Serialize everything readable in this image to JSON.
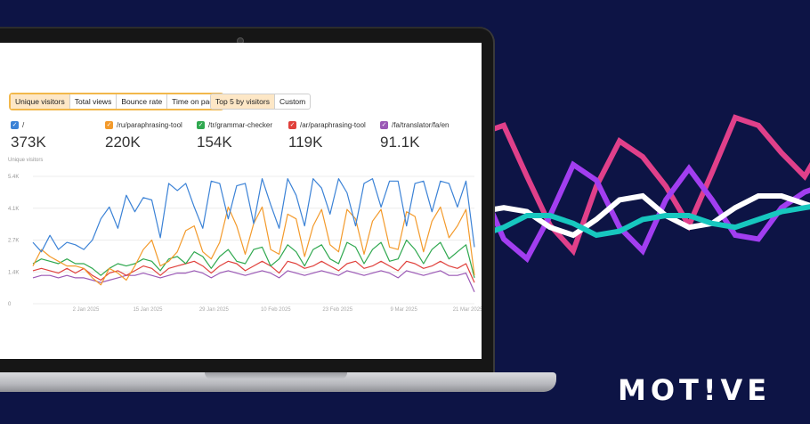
{
  "brand": {
    "logo_text": "MOT!VE"
  },
  "toolbar": {
    "metrics": [
      {
        "label": "Unique visitors",
        "active": true
      },
      {
        "label": "Total views",
        "active": false
      },
      {
        "label": "Bounce rate",
        "active": false
      },
      {
        "label": "Time on page",
        "active": false
      }
    ],
    "groups": [
      {
        "label": "Top 5 by visitors",
        "active": true
      },
      {
        "label": "Custom",
        "active": false
      }
    ],
    "highlight_color": "#f2b84b"
  },
  "legend": [
    {
      "path": "/",
      "value": "373K",
      "color": "#3b82d6"
    },
    {
      "path": "/ru/paraphrasing-tool",
      "value": "220K",
      "color": "#f39a2b"
    },
    {
      "path": "/tr/grammar-checker",
      "value": "154K",
      "color": "#2fa84f"
    },
    {
      "path": "/ar/paraphrasing-tool",
      "value": "119K",
      "color": "#e0413c"
    },
    {
      "path": "/fa/translator/fa/en",
      "value": "91.1K",
      "color": "#9b59b6"
    }
  ],
  "chart_data": {
    "type": "line",
    "ylabel": "Unique visitors",
    "y_ticks": [
      "5.4K",
      "4.1K",
      "2.7K",
      "1.4K",
      "0"
    ],
    "x_ticks": [
      "2 Jan 2025",
      "15 Jan 2025",
      "29 Jan 2025",
      "10 Feb 2025",
      "23 Feb 2025",
      "9 Mar 2025",
      "21 Mar 2025"
    ],
    "ylim": [
      0,
      5400
    ],
    "series": [
      {
        "name": "/",
        "color": "#3b82d6",
        "values": [
          2600,
          2200,
          2900,
          2300,
          2600,
          2500,
          2300,
          2700,
          3600,
          4100,
          3200,
          4600,
          3900,
          4500,
          4400,
          2800,
          5100,
          4800,
          5100,
          4100,
          3200,
          5200,
          5100,
          3600,
          5000,
          5100,
          3400,
          5300,
          4200,
          3200,
          5300,
          4600,
          3300,
          5300,
          4900,
          3800,
          5300,
          4700,
          3300,
          5100,
          5300,
          4100,
          5200,
          5200,
          3300,
          5100,
          5200,
          3900,
          5200,
          5100,
          4100,
          5200,
          2400
        ]
      },
      {
        "name": "/ru/paraphrasing-tool",
        "color": "#f39a2b",
        "values": [
          1600,
          2300,
          2000,
          1800,
          1600,
          1600,
          1500,
          1100,
          800,
          1500,
          1300,
          1000,
          1600,
          2300,
          2700,
          1600,
          1800,
          2200,
          3100,
          3300,
          2200,
          1900,
          2600,
          4100,
          3300,
          2100,
          3400,
          4100,
          2300,
          2100,
          3800,
          3600,
          2000,
          3300,
          4000,
          2500,
          2200,
          4000,
          3600,
          2100,
          3500,
          4000,
          2400,
          2300,
          3900,
          3700,
          2200,
          3500,
          4100,
          2800,
          3300,
          4000,
          1200
        ]
      },
      {
        "name": "/tr/grammar-checker",
        "color": "#2fa84f",
        "values": [
          1700,
          1900,
          1800,
          1700,
          1900,
          1700,
          1700,
          1500,
          1200,
          1500,
          1700,
          1600,
          1700,
          1900,
          1800,
          1400,
          1900,
          2000,
          1700,
          2200,
          2000,
          1500,
          2000,
          2300,
          1800,
          1700,
          2300,
          2400,
          1600,
          1900,
          2500,
          2200,
          1600,
          2300,
          2500,
          1900,
          1700,
          2600,
          2400,
          1700,
          2300,
          2600,
          1800,
          1900,
          2700,
          2300,
          1700,
          2300,
          2600,
          1900,
          2200,
          2500,
          1100
        ]
      },
      {
        "name": "/ar/paraphrasing-tool",
        "color": "#e0413c",
        "values": [
          1400,
          1500,
          1400,
          1300,
          1500,
          1300,
          1500,
          1200,
          1000,
          1300,
          1400,
          1200,
          1400,
          1600,
          1500,
          1200,
          1500,
          1600,
          1700,
          1800,
          1600,
          1300,
          1600,
          1800,
          1700,
          1400,
          1600,
          1800,
          1600,
          1300,
          1800,
          1700,
          1500,
          1600,
          1800,
          1600,
          1400,
          1700,
          1800,
          1500,
          1600,
          1800,
          1600,
          1400,
          1800,
          1700,
          1500,
          1600,
          1800,
          1600,
          1500,
          1700,
          900
        ]
      },
      {
        "name": "/fa/translator/fa/en",
        "color": "#9b59b6",
        "values": [
          1100,
          1200,
          1200,
          1100,
          1200,
          1100,
          1100,
          1000,
          900,
          1000,
          1100,
          1200,
          1200,
          1300,
          1200,
          1100,
          1200,
          1300,
          1300,
          1400,
          1300,
          1100,
          1300,
          1400,
          1300,
          1200,
          1300,
          1400,
          1300,
          1100,
          1400,
          1300,
          1200,
          1300,
          1400,
          1300,
          1200,
          1400,
          1300,
          1200,
          1300,
          1400,
          1300,
          1100,
          1400,
          1300,
          1200,
          1300,
          1400,
          1200,
          1200,
          1300,
          500
        ]
      }
    ]
  },
  "decor_lines": [
    {
      "color": "#e0408a",
      "values": [
        0.82,
        0.86,
        0.6,
        0.35,
        0.22,
        0.55,
        0.78,
        0.7,
        0.55,
        0.35,
        0.62,
        0.9,
        0.86,
        0.72,
        0.6,
        0.8
      ]
    },
    {
      "color": "#a23ef0",
      "values": [
        0.55,
        0.28,
        0.18,
        0.4,
        0.66,
        0.58,
        0.34,
        0.22,
        0.48,
        0.64,
        0.48,
        0.3,
        0.28,
        0.44,
        0.52,
        0.56
      ]
    },
    {
      "color": "#ffffff",
      "values": [
        0.42,
        0.44,
        0.42,
        0.34,
        0.3,
        0.38,
        0.48,
        0.5,
        0.4,
        0.34,
        0.36,
        0.44,
        0.5,
        0.5,
        0.46,
        0.42
      ]
    },
    {
      "color": "#17c7bf",
      "values": [
        0.3,
        0.34,
        0.4,
        0.4,
        0.36,
        0.3,
        0.32,
        0.38,
        0.4,
        0.4,
        0.36,
        0.34,
        0.38,
        0.42,
        0.44,
        0.46
      ]
    }
  ]
}
